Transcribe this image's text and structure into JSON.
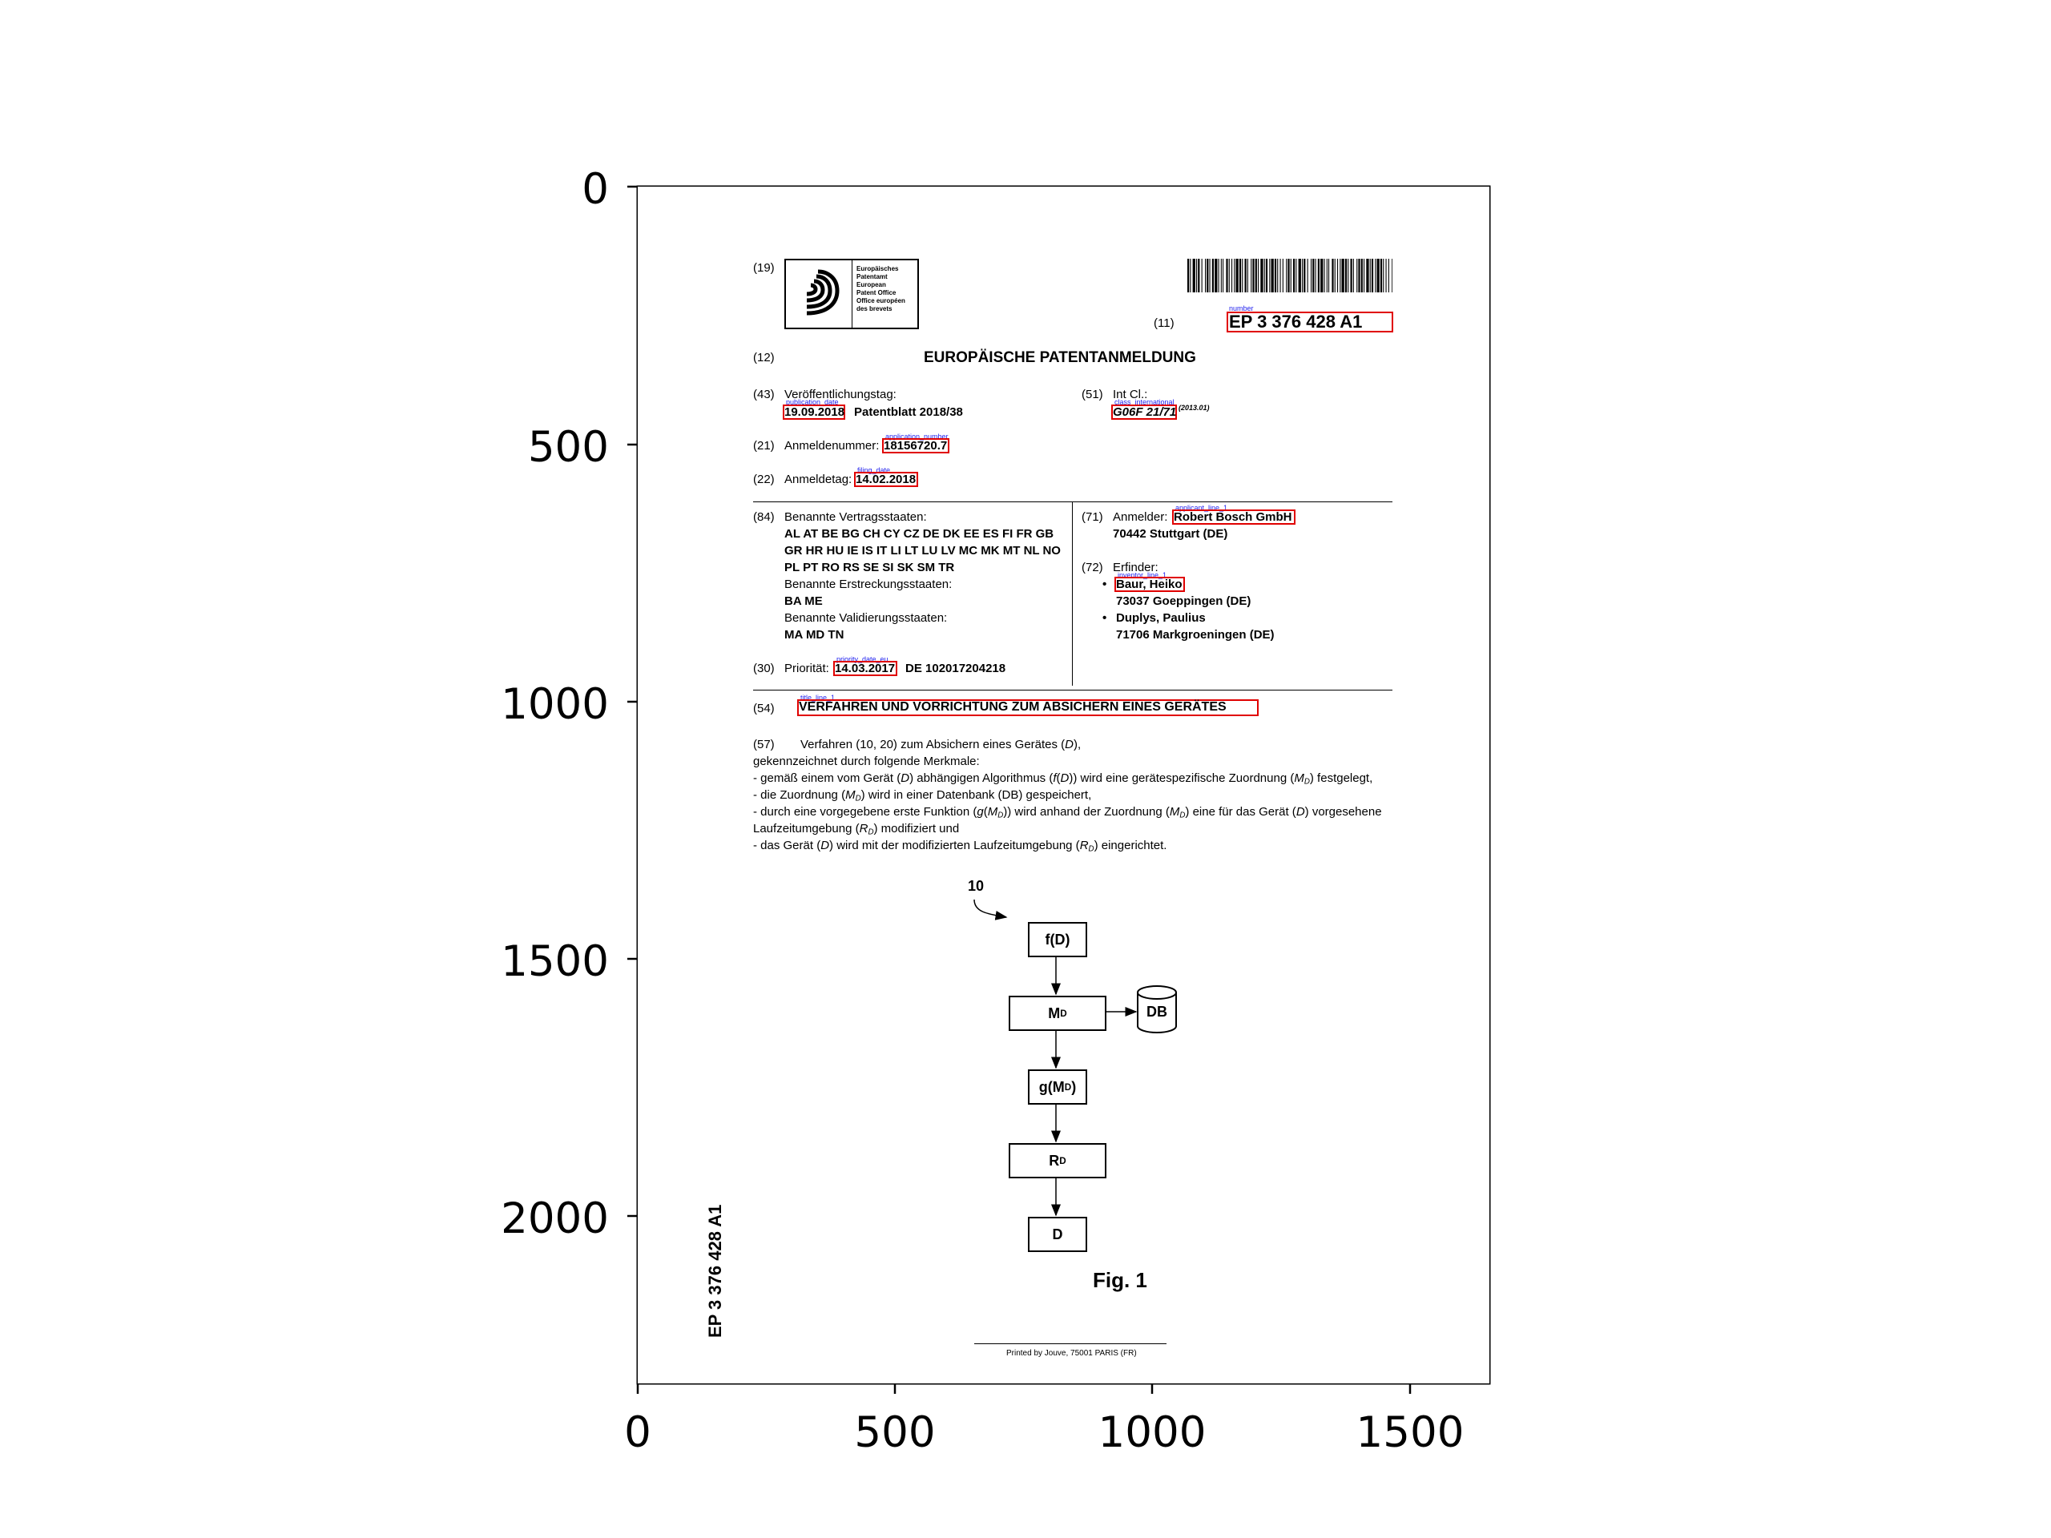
{
  "axes": {
    "y_ticks": [
      "0",
      "500",
      "1000",
      "1500",
      "2000"
    ],
    "x_ticks": [
      "0",
      "500",
      "1000",
      "1500"
    ]
  },
  "header": {
    "code_19": "(19)",
    "office_lines": [
      "Europäisches",
      "Patentamt",
      "European",
      "Patent Office",
      "Office européen",
      "des brevets"
    ],
    "code_11": "(11)",
    "number_annotation": "number",
    "pub_number": "EP 3 376 428 A1",
    "code_12": "(12)",
    "doc_type": "EUROPÄISCHE PATENTANMELDUNG"
  },
  "biblio": {
    "code_43": "(43)",
    "pub_date_label": "Veröffentlichungstag:",
    "pub_date_annotation": "publication_date",
    "pub_date": "19.09.2018",
    "patentblatt": "Patentblatt 2018/38",
    "code_51": "(51)",
    "int_cl_label": "Int Cl.:",
    "class_annotation": "class_international",
    "int_class": "G06F 21/71",
    "int_class_version": "(2013.01)",
    "code_21": "(21)",
    "app_number_label": "Anmeldenummer:",
    "app_number_annotation": "application_number",
    "app_number": "18156720.7",
    "code_22": "(22)",
    "filing_date_label": "Anmeldetag:",
    "filing_date_annotation": "filing_date",
    "filing_date": "14.02.2018"
  },
  "states": {
    "code_84": "(84)",
    "label": "Benannte Vertragsstaaten:",
    "lines": [
      "AL AT BE BG CH CY CZ DE DK EE ES FI FR GB",
      "GR HR HU IE IS IT LI LT LU LV MC MK MT NL NO",
      "PL PT RO RS SE SI SK SM TR"
    ],
    "ext_label": "Benannte Erstreckungsstaaten:",
    "ext_value": "BA ME",
    "val_label": "Benannte Validierungsstaaten:",
    "val_value": "MA MD TN"
  },
  "priority": {
    "code_30": "(30)",
    "label": "Priorität:",
    "annotation": "priority_date_eu",
    "date": "14.03.2017",
    "number": "DE 102017204218"
  },
  "applicant": {
    "code_71": "(71)",
    "label": "Anmelder:",
    "annotation": "applicant_line_1",
    "name": "Robert Bosch GmbH",
    "address": "70442 Stuttgart (DE)"
  },
  "inventors": {
    "code_72": "(72)",
    "label": "Erfinder:",
    "annotation": "inventor_line_1",
    "bullet": "•",
    "inv1_name": "Baur, Heiko",
    "inv1_addr": "73037 Goeppingen (DE)",
    "inv2_name": "Duplys, Paulius",
    "inv2_addr": "71706 Markgroeningen (DE)"
  },
  "title": {
    "code_54": "(54)",
    "annotation": "title_line_1",
    "text": "VERFAHREN UND VORRICHTUNG ZUM ABSICHERN EINES GERÄTES"
  },
  "abstract": {
    "code_57": "(57)",
    "l1_a": "Verfahren (10, 20) zum Absichern eines Gerätes (",
    "l1_D": "D",
    "l1_b": "),",
    "l2": "gekennzeichnet durch folgende Merkmale:",
    "l3_a": "- gemäß einem vom Gerät (",
    "l3_D": "D",
    "l3_b": ") abhängigen Algorithmus (",
    "l3_f": "f",
    "l3_c": "(",
    "l3_D2": "D",
    "l3_d": ")) wird eine gerätespezifische Zuordnung (",
    "l3_M": "M",
    "l3_sub": "D",
    "l3_e": ") festgelegt,",
    "l4_a": "- die Zuordnung (",
    "l4_M": "M",
    "l4_sub": "D",
    "l4_b": ") wird in einer Datenbank (DB) gespeichert,",
    "l5_a": "- durch eine vorgegebene erste Funktion (",
    "l5_g": "g",
    "l5_b": "(",
    "l5_M": "M",
    "l5_sub": "D",
    "l5_c": ")) wird anhand der Zuordnung (",
    "l5_M2": "M",
    "l5_sub2": "D",
    "l5_d": ") eine für das Gerät (",
    "l5_D": "D",
    "l5_e": ") vorgesehene",
    "l6_a": "Laufzeitumgebung (",
    "l6_R": "R",
    "l6_sub": "D",
    "l6_b": ") modifiziert und",
    "l7_a": "- das Gerät (",
    "l7_D": "D",
    "l7_b": ") wird mit der modifizierten Laufzeitumgebung (",
    "l7_R": "R",
    "l7_sub": "D",
    "l7_c": ") eingerichtet."
  },
  "figure": {
    "ref": "10",
    "box1": "f(D)",
    "box2_main": "M",
    "box2_sub": "D",
    "db": "DB",
    "box3_a": "g(M",
    "box3_sub": "D",
    "box3_b": ")",
    "box4_main": "R",
    "box4_sub": "D",
    "box5": "D",
    "caption": "Fig. 1"
  },
  "side_number": "EP 3 376 428 A1",
  "footer": "Printed by Jouve, 75001 PARIS (FR)"
}
